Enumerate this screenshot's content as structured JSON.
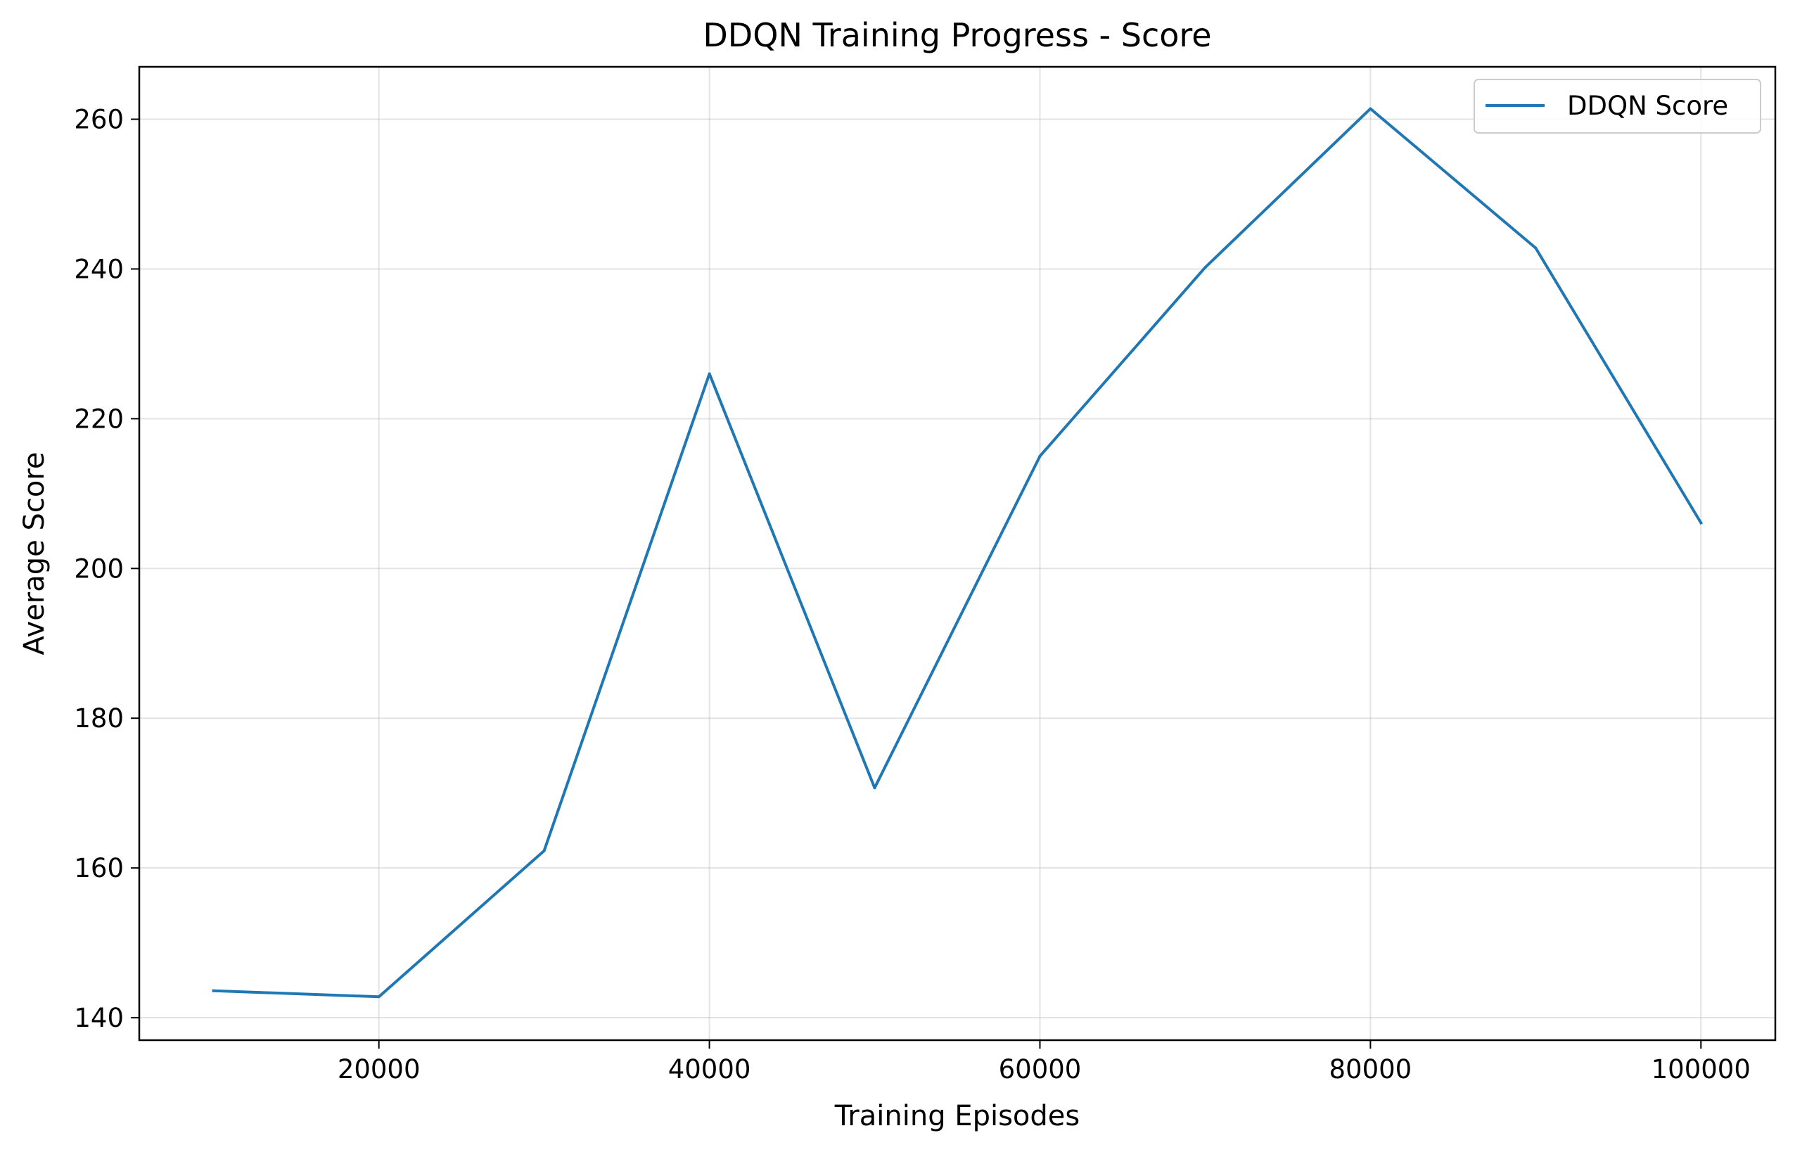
{
  "chart_data": {
    "type": "line",
    "title": "DDQN Training Progress - Score",
    "xlabel": "Training Episodes",
    "ylabel": "Average Score",
    "xlim": [
      5500,
      104500
    ],
    "ylim": [
      137,
      267
    ],
    "xticks": [
      20000,
      40000,
      60000,
      80000,
      100000
    ],
    "yticks": [
      140,
      160,
      180,
      200,
      220,
      240,
      260
    ],
    "grid": true,
    "legend_position": "top-right",
    "series": [
      {
        "name": "DDQN Score",
        "color": "#1f77b4",
        "x": [
          10000,
          20000,
          30000,
          40000,
          50000,
          60000,
          70000,
          80000,
          90000,
          100000
        ],
        "y": [
          143.6,
          142.8,
          162.3,
          226.0,
          170.7,
          215.0,
          240.2,
          261.4,
          242.8,
          206.1
        ]
      }
    ]
  }
}
